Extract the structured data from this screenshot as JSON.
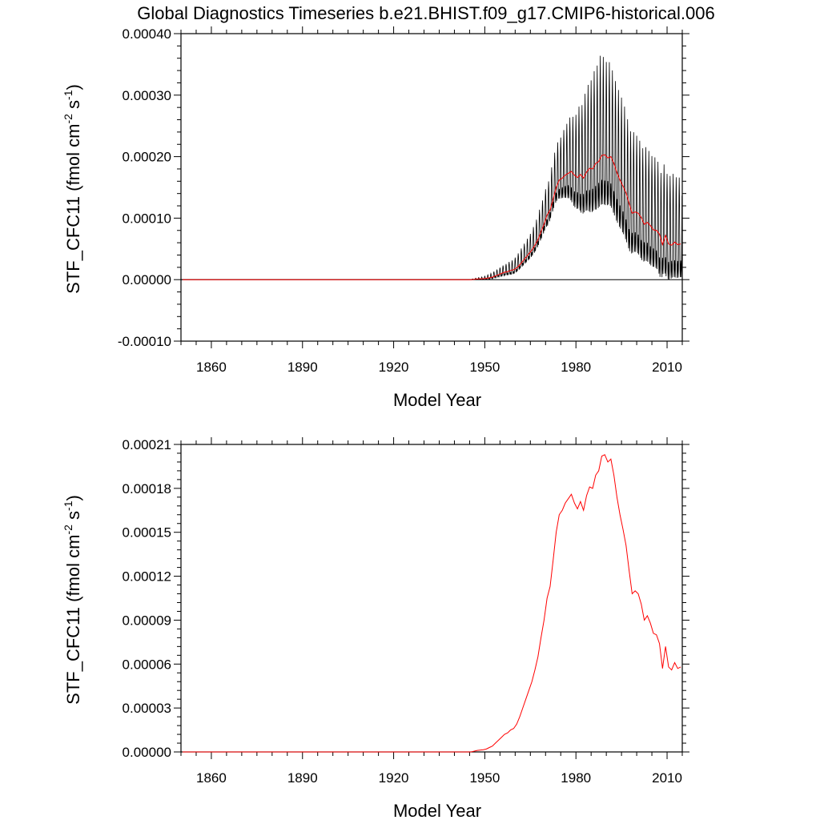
{
  "title": "Global Diagnostics Timeseries b.e21.BHIST.f09_g17.CMIP6-historical.006",
  "colors": {
    "monthly": "#000000",
    "annual": "#ff0000",
    "zero_line": "#000000"
  },
  "chart_data": [
    {
      "type": "line",
      "xlabel": "Model Year",
      "ylabel": "STF_CFC11 (fmol cm-2 s-1)",
      "ylabel_parts": {
        "main": "STF_CFC11 (fmol cm",
        "exp1": "-2",
        "mid": " s",
        "exp2": "-1",
        "end": ")"
      },
      "xlim": [
        1850,
        2015
      ],
      "ylim": [
        -0.0001,
        0.0004
      ],
      "xticks": [
        1860,
        1890,
        1920,
        1950,
        1980,
        2010
      ],
      "yticks": [
        -0.0001,
        0,
        0.0001,
        0.0002,
        0.0003,
        0.0004
      ],
      "ytick_labels": [
        "-0.00010",
        "0.00000",
        "0.00010",
        "0.00020",
        "0.00030",
        "0.00040"
      ],
      "zero_line": true,
      "series": [
        {
          "name": "monthly",
          "kind": "seasonal-monthly",
          "color": "#000000",
          "envelope_years": [
            1850,
            1945,
            1950,
            1955,
            1960,
            1965,
            1970,
            1975,
            1980,
            1985,
            1988,
            1990,
            1995,
            2000,
            2005,
            2010,
            2014
          ],
          "envelope_amp": [
            0,
            0,
            3e-06,
            8e-06,
            1.4e-05,
            2.2e-05,
            3.5e-05,
            5.5e-05,
            8.5e-05,
            0.00012,
            0.000135,
            0.00013,
            0.00012,
            0.000105,
            0.0001,
            9.5e-05,
            9e-05
          ]
        },
        {
          "name": "annual",
          "kind": "annual-mean",
          "color": "#ff0000"
        }
      ]
    },
    {
      "type": "line",
      "xlabel": "Model Year",
      "ylabel": "STF_CFC11 (fmol cm-2 s-1)",
      "ylabel_parts": {
        "main": "STF_CFC11 (fmol cm",
        "exp1": "-2",
        "mid": " s",
        "exp2": "-1",
        "end": ")"
      },
      "xlim": [
        1850,
        2015
      ],
      "ylim": [
        0,
        0.00021
      ],
      "xticks": [
        1860,
        1890,
        1920,
        1950,
        1980,
        2010
      ],
      "yticks": [
        0,
        3e-05,
        6e-05,
        9e-05,
        0.00012,
        0.00015,
        0.00018,
        0.00021
      ],
      "ytick_labels": [
        "0.00000",
        "0.00003",
        "0.00006",
        "0.00009",
        "0.00012",
        "0.00015",
        "0.00018",
        "0.00021"
      ],
      "series": [
        {
          "name": "annual",
          "color": "#ff0000",
          "x": [
            1850,
            1945,
            1947,
            1949,
            1950,
            1951,
            1952,
            1953,
            1954,
            1955,
            1956,
            1957,
            1958,
            1959,
            1960,
            1961,
            1962,
            1963,
            1964,
            1965,
            1966,
            1967,
            1968,
            1969,
            1970,
            1971,
            1972,
            1973,
            1974,
            1975,
            1976,
            1977,
            1978,
            1979,
            1980,
            1981,
            1982,
            1983,
            1984,
            1985,
            1986,
            1987,
            1988,
            1989,
            1990,
            1991,
            1992,
            1993,
            1994,
            1995,
            1996,
            1997,
            1998,
            1999,
            2000,
            2001,
            2002,
            2003,
            2004,
            2005,
            2006,
            2007,
            2008,
            2009,
            2010,
            2011,
            2012,
            2013,
            2014
          ],
          "y": [
            0,
            0,
            1e-06,
            1.5e-06,
            2e-06,
            3e-06,
            4e-06,
            6e-06,
            8e-06,
            1e-05,
            1.2e-05,
            1.3e-05,
            1.5e-05,
            1.6e-05,
            1.9e-05,
            2.4e-05,
            3e-05,
            3.6e-05,
            4.2e-05,
            4.8e-05,
            5.6e-05,
            6.5e-05,
            7.8e-05,
            9e-05,
            0.000105,
            0.000113,
            0.000131,
            0.00015,
            0.000162,
            0.000165,
            0.00017,
            0.000173,
            0.000176,
            0.00017,
            0.000166,
            0.000171,
            0.000165,
            0.000175,
            0.000181,
            0.00018,
            0.000189,
            0.000192,
            0.000202,
            0.000203,
            0.000198,
            0.0002,
            0.000189,
            0.000174,
            0.000162,
            0.000152,
            0.000141,
            0.000124,
            0.000108,
            0.00011,
            0.000108,
            0.000101,
            9e-05,
            9.3e-05,
            8.8e-05,
            8.1e-05,
            8e-05,
            7.4e-05,
            5.7e-05,
            7.2e-05,
            5.8e-05,
            5.6e-05,
            6.1e-05,
            5.7e-05,
            5.8e-05
          ]
        }
      ]
    }
  ]
}
